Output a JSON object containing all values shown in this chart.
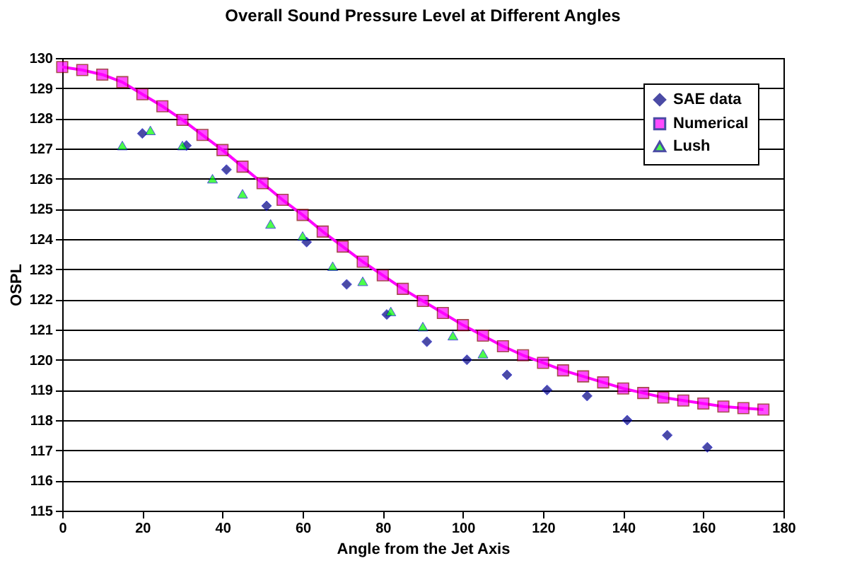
{
  "chart_data": {
    "type": "scatter",
    "title": "Overall Sound Pressure Level at Different Angles",
    "xlabel": "Angle from the Jet Axis",
    "ylabel": "OSPL",
    "xlim": [
      0,
      180
    ],
    "xticks": [
      0,
      20,
      40,
      60,
      80,
      100,
      120,
      140,
      160,
      180
    ],
    "ylim": [
      115,
      130
    ],
    "yticks": [
      115,
      116,
      117,
      118,
      119,
      120,
      121,
      122,
      123,
      124,
      125,
      126,
      127,
      128,
      129,
      130
    ],
    "grid": "y",
    "legend": "top right",
    "series": [
      {
        "name": "SAE data",
        "type": "scatter",
        "marker": "diamond",
        "color": "#000080",
        "x": [
          20,
          31,
          41,
          51,
          61,
          71,
          81,
          91,
          101,
          111,
          121,
          131,
          141,
          151,
          161
        ],
        "values": [
          127.5,
          127.1,
          126.3,
          125.1,
          123.9,
          122.5,
          121.5,
          120.6,
          120.0,
          119.5,
          119.0,
          118.8,
          118.0,
          117.5,
          117.1
        ]
      },
      {
        "name": "Numerical",
        "type": "line",
        "marker": "square",
        "color": "#ff00ff",
        "x": [
          0,
          5,
          10,
          15,
          20,
          25,
          30,
          35,
          40,
          45,
          50,
          55,
          60,
          65,
          70,
          75,
          80,
          85,
          90,
          95,
          100,
          105,
          110,
          115,
          120,
          125,
          130,
          135,
          140,
          145,
          150,
          155,
          160,
          165,
          170,
          175
        ],
        "values": [
          129.7,
          129.6,
          129.45,
          129.2,
          128.8,
          128.4,
          127.95,
          127.45,
          126.95,
          126.4,
          125.85,
          125.3,
          124.8,
          124.25,
          123.75,
          123.25,
          122.8,
          122.35,
          121.95,
          121.55,
          121.15,
          120.8,
          120.45,
          120.15,
          119.9,
          119.65,
          119.45,
          119.25,
          119.05,
          118.9,
          118.75,
          118.65,
          118.55,
          118.45,
          118.4,
          118.35
        ]
      },
      {
        "name": "Lush",
        "type": "scatter",
        "marker": "triangle",
        "color": "#00ff00",
        "x": [
          15,
          22,
          30,
          37.5,
          45,
          52,
          60,
          67.5,
          75,
          82,
          90,
          97.5,
          105
        ],
        "values": [
          127.1,
          127.6,
          127.1,
          126.0,
          125.5,
          124.5,
          124.1,
          123.1,
          122.6,
          121.6,
          121.1,
          120.8,
          120.2
        ]
      }
    ]
  }
}
